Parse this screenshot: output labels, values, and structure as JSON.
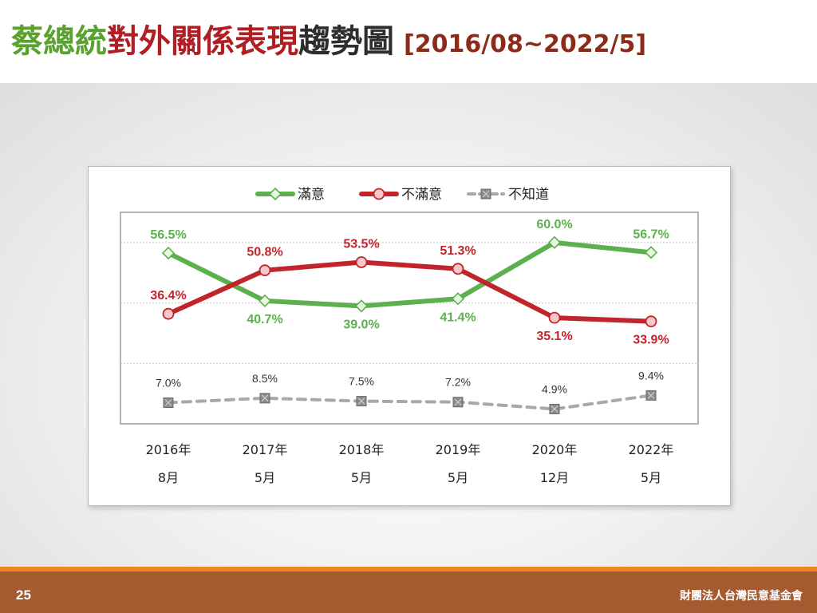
{
  "slide": {
    "title_part1": "蔡總統",
    "title_part2": "對外關係表現",
    "title_part3": "趨勢圖",
    "title_range": "[2016/08~2022/5]",
    "page_number": "25",
    "organization": "財團法人台灣民意基金會"
  },
  "colors": {
    "satisfied": "#5cb04e",
    "dissatisfied": "#c0252c",
    "unknown": "#a8a8a8",
    "title_green": "#5aa12e",
    "title_red": "#b01e23",
    "footer": "#a55a30",
    "footer_accent": "#e9891f"
  },
  "chart_data": {
    "type": "line",
    "categories": [
      [
        "2016年",
        "8月"
      ],
      [
        "2017年",
        "5月"
      ],
      [
        "2018年",
        "5月"
      ],
      [
        "2019年",
        "5月"
      ],
      [
        "2020年",
        "12月"
      ],
      [
        "2022年",
        "5月"
      ]
    ],
    "series": [
      {
        "name": "滿意",
        "values": [
          56.5,
          40.7,
          39.0,
          41.4,
          60.0,
          56.7
        ],
        "labels": [
          "56.5%",
          "40.7%",
          "39.0%",
          "41.4%",
          "60.0%",
          "56.7%"
        ],
        "color": "#5cb04e",
        "marker": "diamond",
        "line_style": "solid",
        "label_positions": [
          "above",
          "below",
          "below",
          "below",
          "above",
          "above"
        ]
      },
      {
        "name": "不滿意",
        "values": [
          36.4,
          50.8,
          53.5,
          51.3,
          35.1,
          33.9
        ],
        "labels": [
          "36.4%",
          "50.8%",
          "53.5%",
          "51.3%",
          "35.1%",
          "33.9%"
        ],
        "color": "#c0252c",
        "marker": "circle",
        "line_style": "solid",
        "label_positions": [
          "above",
          "above",
          "above",
          "above",
          "below",
          "below"
        ]
      },
      {
        "name": "不知道",
        "values": [
          7.0,
          8.5,
          7.5,
          7.2,
          4.9,
          9.4
        ],
        "labels": [
          "7.0%",
          "8.5%",
          "7.5%",
          "7.2%",
          "4.9%",
          "9.4%"
        ],
        "color": "#a8a8a8",
        "marker": "square-x",
        "line_style": "dashed",
        "label_positions": [
          "above",
          "above",
          "above",
          "above",
          "above",
          "above"
        ]
      }
    ],
    "ylim": [
      0,
      70
    ],
    "gridlines": [
      20,
      40,
      60
    ],
    "legend_position": "top-center",
    "xlabel": "",
    "ylabel": ""
  }
}
